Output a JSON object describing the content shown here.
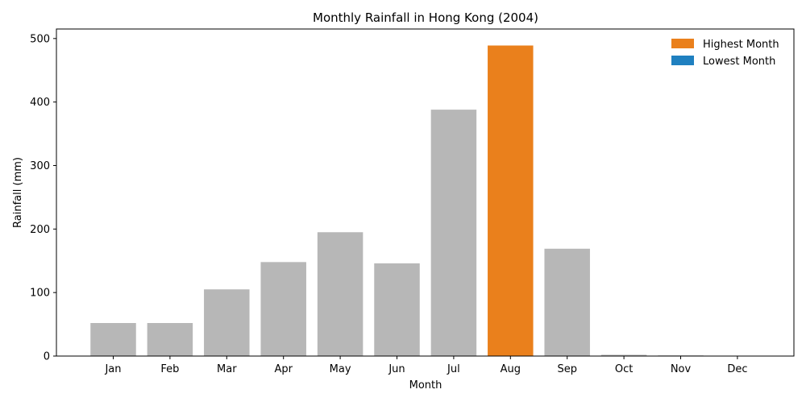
{
  "chart_data": {
    "type": "bar",
    "title": "Monthly Rainfall in Hong Kong (2004)",
    "xlabel": "Month",
    "ylabel": "Rainfall (mm)",
    "categories": [
      "Jan",
      "Feb",
      "Mar",
      "Apr",
      "May",
      "Jun",
      "Jul",
      "Aug",
      "Sep",
      "Oct",
      "Nov",
      "Dec"
    ],
    "values": [
      52,
      52,
      105,
      148,
      195,
      146,
      388,
      489,
      169,
      2,
      1,
      0
    ],
    "ylim": [
      0,
      515
    ],
    "yticks": [
      0,
      100,
      200,
      300,
      400,
      500
    ],
    "grid": false,
    "legend_position": "top-right",
    "legend": [
      {
        "label": "Highest Month",
        "color": "#ea801c"
      },
      {
        "label": "Lowest Month",
        "color": "#1f80c0"
      }
    ],
    "colors": {
      "default_bar": "#b7b7b7",
      "highest_bar": "#ea801c",
      "lowest_bar": "#1f80c0"
    },
    "highlight": {
      "highest_index": 7,
      "lowest_index": 11
    }
  }
}
